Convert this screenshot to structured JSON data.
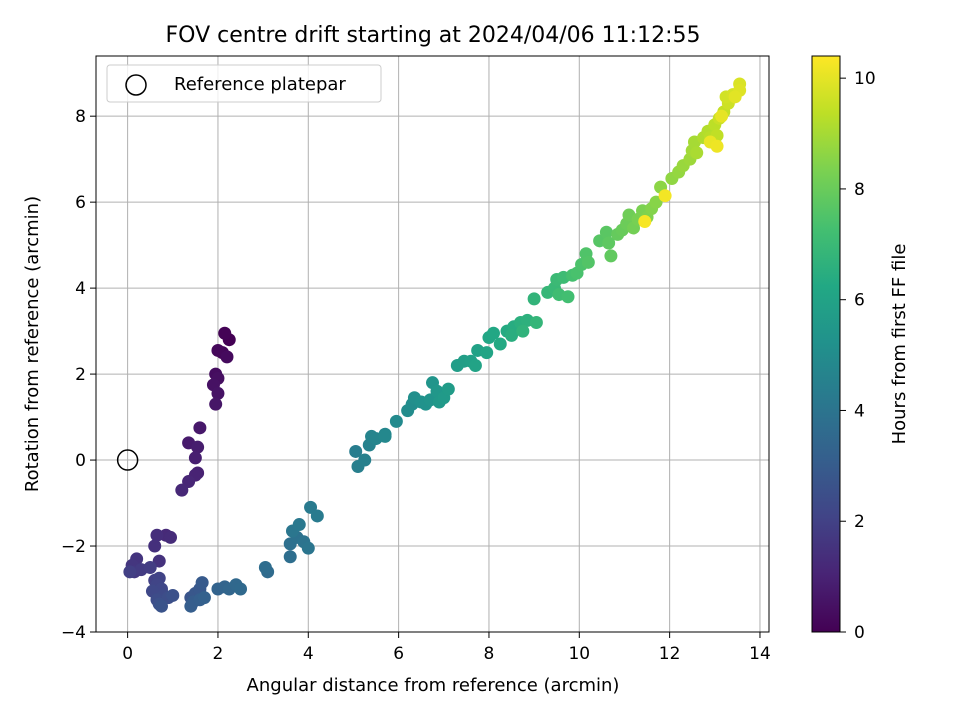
{
  "chart_data": {
    "type": "scatter",
    "title": "FOV centre drift starting at 2024/04/06 11:12:55",
    "xlabel": "Angular distance from reference (arcmin)",
    "ylabel": "Rotation from reference (arcmin)",
    "xlim": [
      -0.7,
      14.2
    ],
    "ylim": [
      -4.0,
      9.4
    ],
    "xticks": [
      0,
      2,
      4,
      6,
      8,
      10,
      12,
      14
    ],
    "yticks": [
      -4,
      -2,
      0,
      2,
      4,
      6,
      8
    ],
    "grid": true,
    "legend": {
      "placement": "top-left",
      "entries": [
        "Reference platepar"
      ]
    },
    "reference_point": {
      "x": 0,
      "y": 0,
      "label": "Reference platepar"
    },
    "colorbar": {
      "label": "Hours from first FF file",
      "range": [
        0,
        10.4
      ],
      "ticks": [
        0,
        2,
        4,
        6,
        8,
        10
      ],
      "colormap": "viridis"
    },
    "series": [
      {
        "points": [
          [
            2.25,
            2.8
          ],
          [
            2.15,
            2.95
          ],
          [
            2.1,
            2.5
          ],
          [
            2.0,
            2.55
          ],
          [
            2.2,
            2.4
          ],
          [
            1.95,
            2.0
          ],
          [
            2.0,
            1.9
          ],
          [
            1.9,
            1.75
          ],
          [
            2.0,
            1.55
          ],
          [
            1.95,
            1.3
          ],
          [
            1.6,
            0.75
          ],
          [
            1.35,
            0.4
          ],
          [
            1.55,
            0.3
          ],
          [
            1.5,
            0.05
          ],
          [
            1.55,
            -0.3
          ],
          [
            1.5,
            -0.35
          ],
          [
            1.35,
            -0.5
          ],
          [
            1.2,
            -0.7
          ],
          [
            0.85,
            -1.75
          ],
          [
            0.95,
            -1.8
          ],
          [
            0.65,
            -1.75
          ],
          [
            0.6,
            -2.0
          ],
          [
            0.7,
            -2.35
          ],
          [
            0.2,
            -2.3
          ],
          [
            0.1,
            -2.45
          ],
          [
            0.15,
            -2.6
          ],
          [
            0.3,
            -2.55
          ],
          [
            0.5,
            -2.5
          ],
          [
            0.05,
            -2.6
          ],
          [
            0.6,
            -2.8
          ],
          [
            0.7,
            -2.75
          ],
          [
            0.65,
            -2.9
          ],
          [
            0.75,
            -3.0
          ],
          [
            0.55,
            -3.05
          ],
          [
            0.8,
            -3.15
          ],
          [
            0.65,
            -3.25
          ],
          [
            0.9,
            -3.2
          ],
          [
            0.7,
            -3.35
          ],
          [
            1.0,
            -3.15
          ],
          [
            0.75,
            -3.4
          ],
          [
            1.4,
            -3.2
          ],
          [
            1.5,
            -3.1
          ],
          [
            1.6,
            -3.0
          ],
          [
            1.65,
            -2.85
          ],
          [
            1.45,
            -3.3
          ],
          [
            1.4,
            -3.4
          ],
          [
            1.6,
            -3.25
          ],
          [
            1.7,
            -3.2
          ],
          [
            2.0,
            -3.0
          ],
          [
            2.15,
            -2.95
          ],
          [
            2.25,
            -3.0
          ],
          [
            2.4,
            -2.9
          ],
          [
            2.5,
            -3.0
          ],
          [
            3.1,
            -2.6
          ],
          [
            3.05,
            -2.5
          ],
          [
            3.6,
            -2.25
          ],
          [
            3.6,
            -1.95
          ],
          [
            3.75,
            -1.8
          ],
          [
            3.9,
            -1.9
          ],
          [
            4.0,
            -2.05
          ],
          [
            3.65,
            -1.65
          ],
          [
            3.8,
            -1.5
          ],
          [
            4.05,
            -1.1
          ],
          [
            4.2,
            -1.3
          ],
          [
            5.05,
            0.2
          ],
          [
            5.1,
            -0.15
          ],
          [
            5.25,
            0.0
          ],
          [
            5.35,
            0.35
          ],
          [
            5.4,
            0.55
          ],
          [
            5.5,
            0.5
          ],
          [
            5.7,
            0.6
          ],
          [
            5.7,
            0.55
          ],
          [
            5.95,
            0.9
          ],
          [
            6.2,
            1.15
          ],
          [
            6.3,
            1.3
          ],
          [
            6.35,
            1.45
          ],
          [
            6.5,
            1.35
          ],
          [
            6.6,
            1.3
          ],
          [
            6.7,
            1.4
          ],
          [
            6.75,
            1.8
          ],
          [
            6.85,
            1.6
          ],
          [
            6.9,
            1.35
          ],
          [
            7.0,
            1.45
          ],
          [
            7.1,
            1.65
          ],
          [
            7.3,
            2.2
          ],
          [
            7.45,
            2.3
          ],
          [
            7.6,
            2.3
          ],
          [
            7.75,
            2.55
          ],
          [
            7.7,
            2.2
          ],
          [
            7.95,
            2.5
          ],
          [
            8.0,
            2.85
          ],
          [
            8.1,
            2.95
          ],
          [
            8.25,
            2.7
          ],
          [
            8.4,
            3.0
          ],
          [
            8.55,
            3.1
          ],
          [
            8.5,
            2.9
          ],
          [
            8.7,
            3.2
          ],
          [
            8.85,
            3.25
          ],
          [
            8.75,
            3.0
          ],
          [
            9.0,
            3.75
          ],
          [
            9.05,
            3.2
          ],
          [
            9.3,
            3.9
          ],
          [
            9.45,
            4.0
          ],
          [
            9.5,
            4.2
          ],
          [
            9.65,
            4.25
          ],
          [
            9.55,
            3.85
          ],
          [
            9.75,
            3.8
          ],
          [
            9.85,
            4.3
          ],
          [
            9.95,
            4.35
          ],
          [
            10.05,
            4.55
          ],
          [
            10.15,
            4.8
          ],
          [
            10.2,
            4.6
          ],
          [
            10.45,
            5.1
          ],
          [
            10.6,
            5.3
          ],
          [
            10.65,
            5.05
          ],
          [
            10.7,
            4.75
          ],
          [
            10.85,
            5.25
          ],
          [
            10.95,
            5.35
          ],
          [
            11.05,
            5.5
          ],
          [
            11.1,
            5.7
          ],
          [
            11.2,
            5.4
          ],
          [
            11.3,
            5.6
          ],
          [
            11.4,
            5.8
          ],
          [
            11.5,
            5.65
          ],
          [
            11.6,
            5.85
          ],
          [
            11.7,
            6.0
          ],
          [
            11.8,
            6.35
          ],
          [
            12.05,
            6.55
          ],
          [
            12.2,
            6.7
          ],
          [
            12.3,
            6.85
          ],
          [
            12.45,
            7.0
          ],
          [
            12.5,
            7.2
          ],
          [
            12.55,
            7.4
          ],
          [
            12.6,
            7.15
          ],
          [
            12.75,
            7.5
          ],
          [
            12.85,
            7.65
          ],
          [
            12.9,
            7.5
          ],
          [
            13.0,
            7.8
          ],
          [
            13.05,
            7.55
          ],
          [
            13.2,
            8.1
          ],
          [
            13.1,
            7.95
          ],
          [
            13.3,
            8.3
          ],
          [
            13.25,
            8.45
          ],
          [
            13.4,
            8.5
          ],
          [
            13.55,
            8.75
          ],
          [
            13.55,
            8.6
          ],
          [
            13.45,
            8.45
          ],
          [
            13.15,
            8.0
          ],
          [
            12.9,
            7.4
          ],
          [
            13.05,
            7.3
          ],
          [
            11.9,
            6.15
          ],
          [
            11.45,
            5.55
          ]
        ]
      }
    ]
  }
}
